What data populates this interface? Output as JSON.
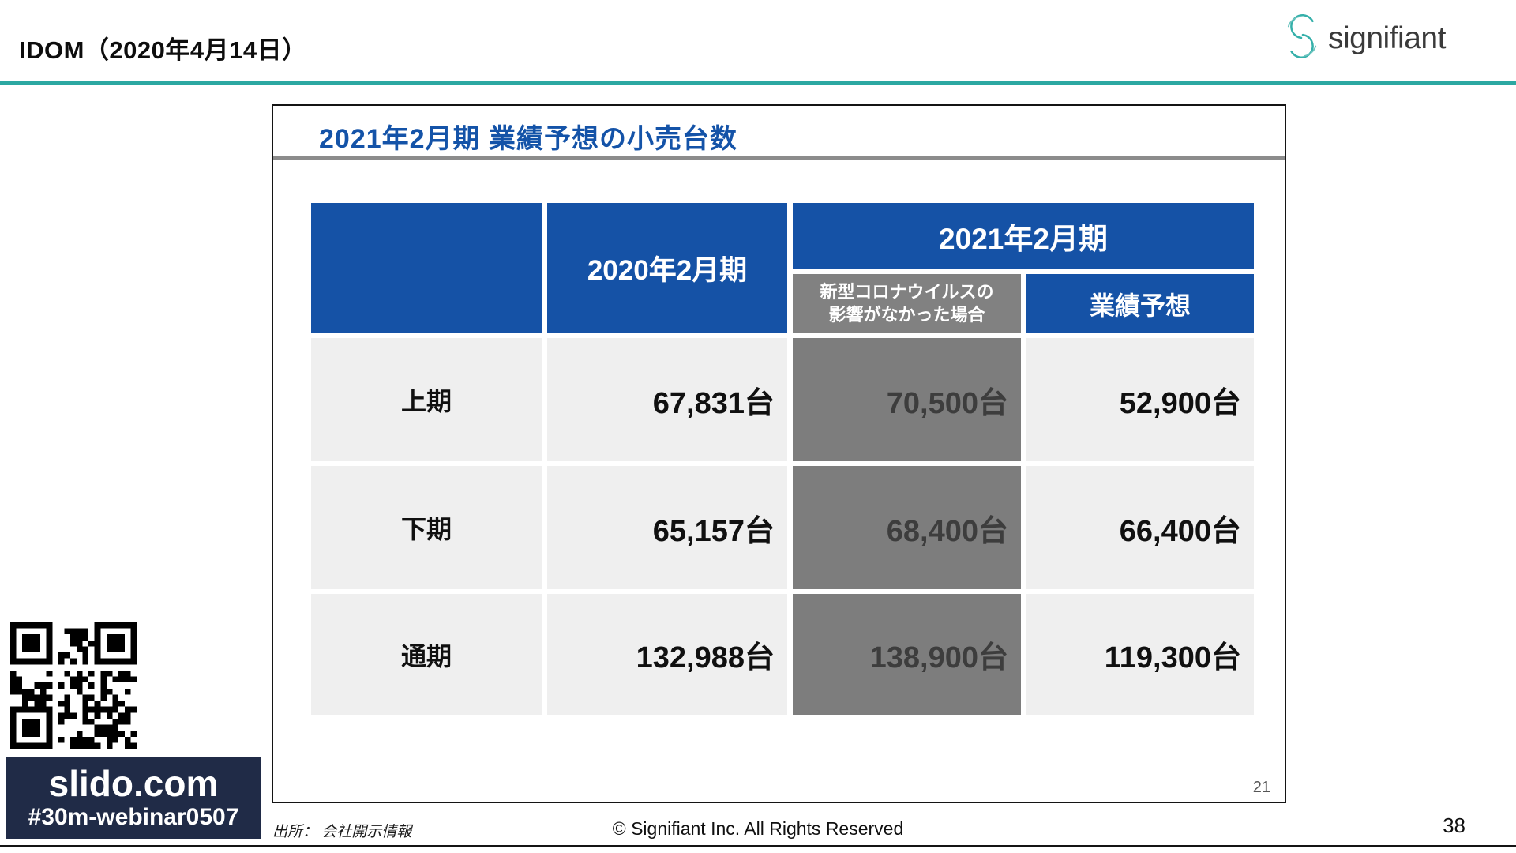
{
  "header": {
    "title": "IDOM（2020年4月14日）",
    "logo_text": "signifiant"
  },
  "slide": {
    "title": "2021年2月期 業績予想の小売台数",
    "page_number": "21",
    "table": {
      "headers": {
        "fy2020": "2020年2月期",
        "fy2021": "2021年2月期",
        "no_covid_line1": "新型コロナウイルスの",
        "no_covid_line2": "影響がなかった場合",
        "forecast": "業績予想"
      },
      "rows": [
        {
          "label": "上期",
          "fy2020": "67,831台",
          "no_covid": "70,500台",
          "forecast": "52,900台"
        },
        {
          "label": "下期",
          "fy2020": "65,157台",
          "no_covid": "68,400台",
          "forecast": "66,400台"
        },
        {
          "label": "通期",
          "fy2020": "132,988台",
          "no_covid": "138,900台",
          "forecast": "119,300台"
        }
      ]
    }
  },
  "slido": {
    "url": "slido.com",
    "hashtag": "#30m-webinar0507"
  },
  "footer": {
    "source": "出所： 会社開示情報",
    "copyright": "© Signifiant Inc. All Rights Reserved",
    "page_number": "38"
  },
  "colors": {
    "header_blue": "#1552a6",
    "subheader_gray": "#818181",
    "data_gray": "#7d7d7d",
    "data_light": "#efefef",
    "accent_teal": "#2ca8a2",
    "slido_navy": "#202b47",
    "title_blue": "#1453a8"
  }
}
